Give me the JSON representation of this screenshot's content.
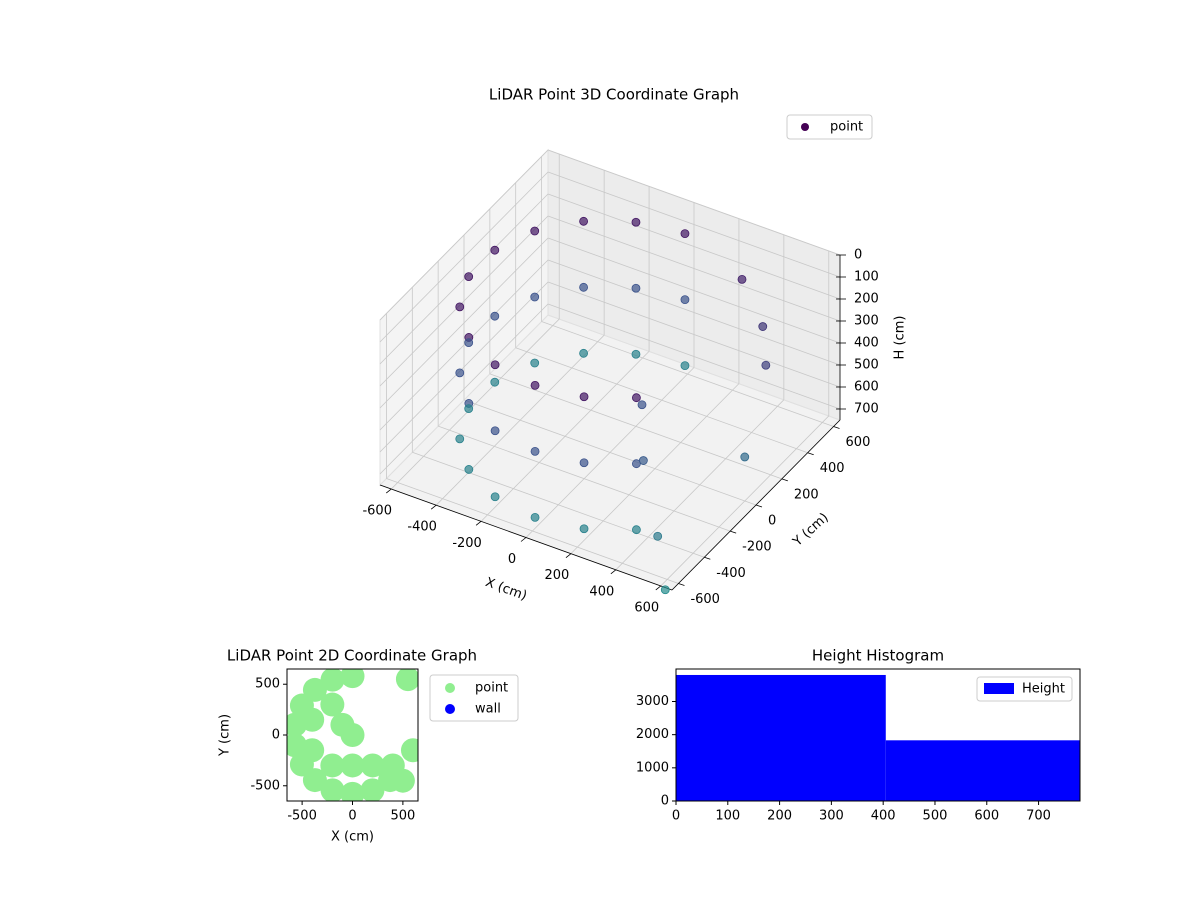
{
  "chart_data": [
    {
      "type": "scatter3d",
      "title": "LiDAR Point 3D Coordinate Graph",
      "xlabel": "X (cm)",
      "ylabel": "Y (cm)",
      "zlabel": "H (cm)",
      "xlim": [
        -650,
        650
      ],
      "ylim": [
        -650,
        650
      ],
      "zlim": [
        0,
        750
      ],
      "zinverted": true,
      "xticks": [
        -600,
        -400,
        -200,
        0,
        200,
        400,
        600
      ],
      "yticks": [
        -600,
        -400,
        -200,
        0,
        200,
        400,
        600
      ],
      "zticks": [
        0,
        100,
        200,
        300,
        400,
        500,
        600,
        700
      ],
      "grid": true,
      "legend": "upper right",
      "colormap": [
        "#440154",
        "#3b528b",
        "#21918c"
      ],
      "clim": [
        0,
        800
      ],
      "series": [
        {
          "name": "point",
          "x": [
            0,
            -198,
            -373,
            -502,
            -571,
            -571,
            -502,
            -373,
            -198,
            0,
            198,
            373,
            0,
            -198,
            -373,
            -502,
            -571,
            -571,
            -502,
            -373,
            -198,
            0,
            198,
            373,
            0,
            -198,
            -373,
            -502,
            -571,
            -571,
            -502,
            -373,
            -198,
            0,
            198,
            373,
            300,
            450,
            550,
            600,
            200,
            350,
            500,
            620
          ],
          "y": [
            580,
            545,
            444,
            290,
            101,
            -101,
            -290,
            -444,
            -545,
            -580,
            -545,
            -444,
            580,
            545,
            444,
            290,
            101,
            -101,
            -290,
            -444,
            -545,
            -580,
            -545,
            -444,
            580,
            545,
            444,
            290,
            101,
            -101,
            -290,
            -444,
            -545,
            -580,
            -545,
            -444,
            500,
            400,
            250,
            0,
            -100,
            -350,
            -500,
            -650
          ],
          "h": [
            100,
            100,
            100,
            100,
            100,
            100,
            100,
            100,
            100,
            100,
            100,
            100,
            400,
            400,
            400,
            400,
            400,
            400,
            400,
            400,
            400,
            400,
            400,
            400,
            700,
            700,
            700,
            700,
            700,
            700,
            700,
            700,
            700,
            700,
            700,
            700,
            150,
            250,
            300,
            550,
            400,
            450,
            650,
            760
          ]
        }
      ]
    },
    {
      "type": "scatter",
      "title": "LiDAR Point 2D Coordinate Graph",
      "xlabel": "X (cm)",
      "ylabel": "Y (cm)",
      "xlim": [
        -650,
        650
      ],
      "ylim": [
        -650,
        650
      ],
      "xticks": [
        -500,
        0,
        500
      ],
      "yticks": [
        -500,
        0,
        500
      ],
      "legend": "outside right",
      "series": [
        {
          "name": "point",
          "color": "#90ee90",
          "x": [
            0,
            -198,
            -373,
            -502,
            -571,
            -571,
            -502,
            -373,
            -198,
            0,
            198,
            373,
            -400,
            -200,
            -400,
            -200,
            0,
            0,
            200,
            400,
            -100,
            500,
            550,
            600
          ],
          "y": [
            580,
            545,
            444,
            290,
            101,
            -101,
            -290,
            -444,
            -545,
            -580,
            -545,
            -444,
            150,
            300,
            -150,
            -300,
            0,
            -300,
            -300,
            -300,
            100,
            -450,
            550,
            -150
          ]
        },
        {
          "name": "wall",
          "color": "#0000ff",
          "x": [],
          "y": []
        }
      ]
    },
    {
      "type": "histogram",
      "title": "Height Histogram",
      "bins": [
        0,
        405,
        780
      ],
      "values": [
        3800,
        1830
      ],
      "xlim": [
        0,
        780
      ],
      "ylim": [
        0,
        3980
      ],
      "xticks": [
        0,
        100,
        200,
        300,
        400,
        500,
        600,
        700
      ],
      "yticks": [
        0,
        1000,
        2000,
        3000
      ],
      "legend": "upper right",
      "series_name": "Height",
      "color": "#0000ff"
    }
  ]
}
